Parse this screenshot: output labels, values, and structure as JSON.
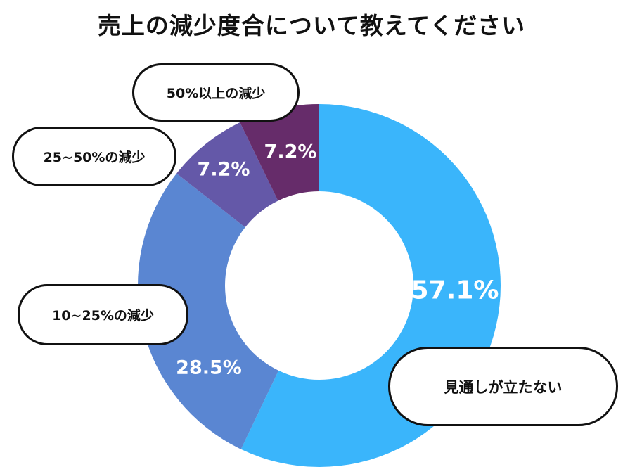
{
  "chart_data": {
    "type": "pie",
    "subtype": "donut",
    "title": "売上の減少度合について教えてください",
    "categories": [
      "見通しが立たない",
      "10~25%の減少",
      "25~50%の減少",
      "50%以上の減少"
    ],
    "values": [
      57.1,
      28.5,
      7.2,
      7.2
    ],
    "value_labels": [
      "57.1%",
      "28.5%",
      "7.2%",
      "7.2%"
    ],
    "colors": [
      "#3ab5fb",
      "#5a86d2",
      "#6458a8",
      "#662c6a"
    ],
    "start": "top",
    "direction": "clockwise"
  }
}
